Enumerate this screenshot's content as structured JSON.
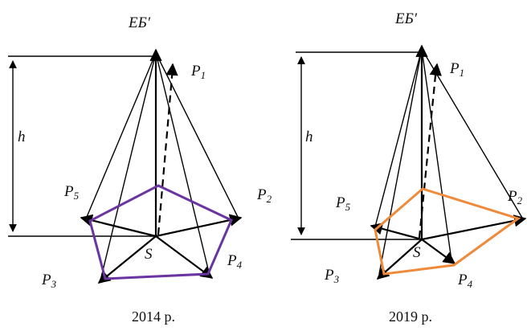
{
  "apex_label": "ЕБ′",
  "height_label": "h",
  "center_label": "S",
  "point_prefix": "P",
  "point_indices": [
    "1",
    "2",
    "3",
    "4",
    "5"
  ],
  "colors": {
    "polygon_2014": "#6a35a0",
    "polygon_2019": "#ee8a3a",
    "lines": "#000000"
  },
  "diagrams": [
    {
      "caption": "2014 р."
    },
    {
      "caption": "2019 р."
    }
  ]
}
